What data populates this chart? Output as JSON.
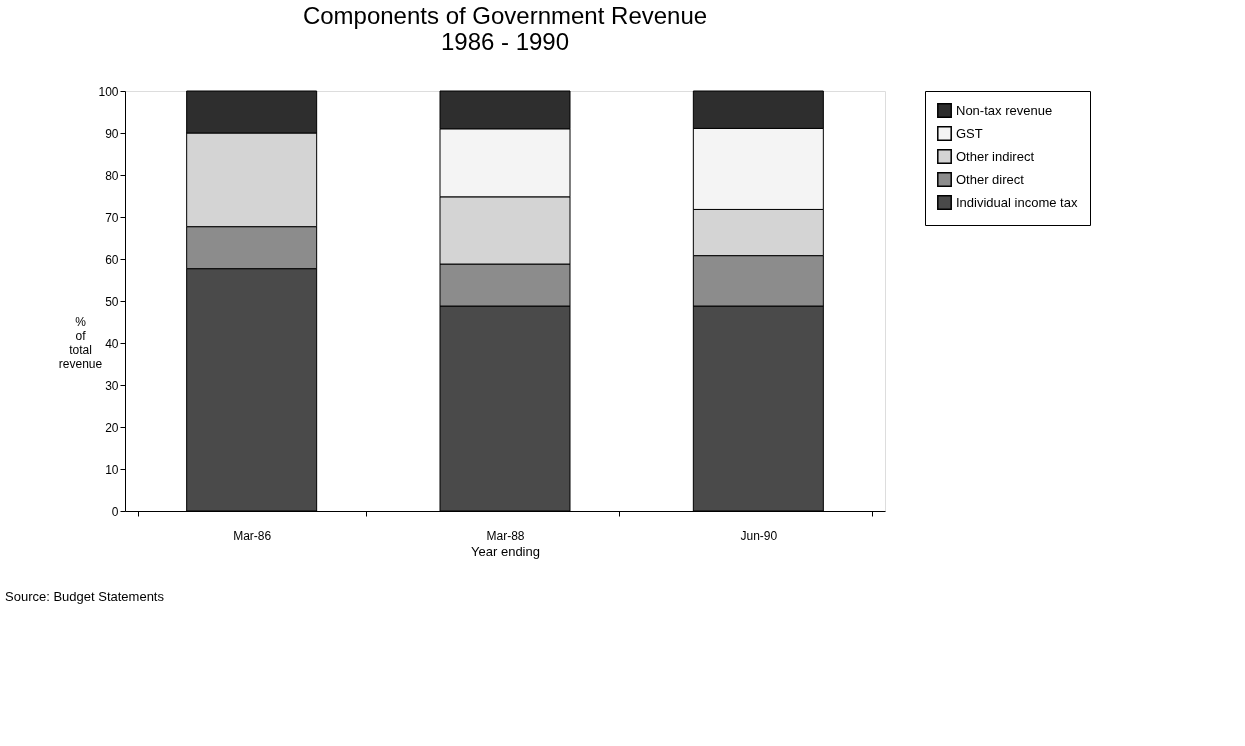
{
  "chart_data": {
    "type": "bar",
    "title": "Components of Government Revenue\n1986 - 1990",
    "xlabel": "Year ending",
    "ylabel": "% of total revenue",
    "categories": [
      "Mar-86",
      "Mar-88",
      "Jun-90"
    ],
    "stacked": true,
    "series": [
      {
        "name": "Individual income tax",
        "color": "#4a4a4a",
        "values": [
          57.7,
          48.8,
          48.8
        ]
      },
      {
        "name": "Other direct",
        "color": "#8c8c8c",
        "values": [
          10,
          10,
          12
        ]
      },
      {
        "name": "Other indirect",
        "color": "#d4d4d4",
        "values": [
          22.3,
          16,
          11
        ]
      },
      {
        "name": "GST",
        "color": "#f4f4f4",
        "values": [
          null,
          16.2,
          19.3
        ]
      },
      {
        "name": "Non-tax revenue",
        "color": "#2e2e2e",
        "values": [
          10,
          9,
          8.9
        ]
      }
    ],
    "ylim": [
      0,
      100
    ],
    "yticks": [
      0,
      10,
      20,
      30,
      40,
      50,
      60,
      70,
      80,
      90,
      100
    ],
    "grid": false,
    "legend": "right",
    "annotations": [
      "Source: Budget Statements"
    ]
  }
}
